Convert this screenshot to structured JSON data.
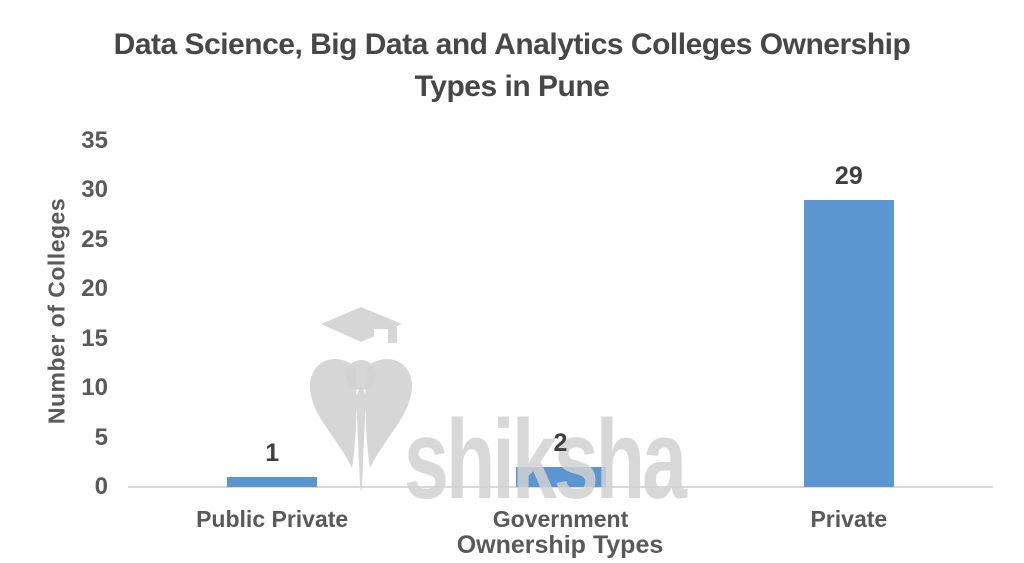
{
  "chart_data": {
    "type": "bar",
    "title": "Data Science, Big Data and Analytics Colleges Ownership Types in Pune",
    "title_line1": "Data Science, Big Data and Analytics Colleges Ownership",
    "title_line2": "Types in Pune",
    "categories": [
      "Public Private",
      "Government",
      "Private"
    ],
    "values": [
      1,
      2,
      29
    ],
    "data_labels": [
      "1",
      "2",
      "29"
    ],
    "xlabel": "Ownership Types",
    "ylabel": "Number of Colleges",
    "ylim": [
      0,
      35
    ],
    "yticks": [
      0,
      5,
      10,
      15,
      20,
      25,
      30,
      35
    ],
    "grid": false,
    "legend_position": "none",
    "bar_color": "#5b96d0",
    "axis_line_color": "#d9d9d9",
    "label_color": "#595959",
    "title_color": "#474747"
  },
  "watermark": {
    "text": "shiksha",
    "icon": "graduation-cap-quill-logo",
    "color": "#d1d1d1"
  }
}
